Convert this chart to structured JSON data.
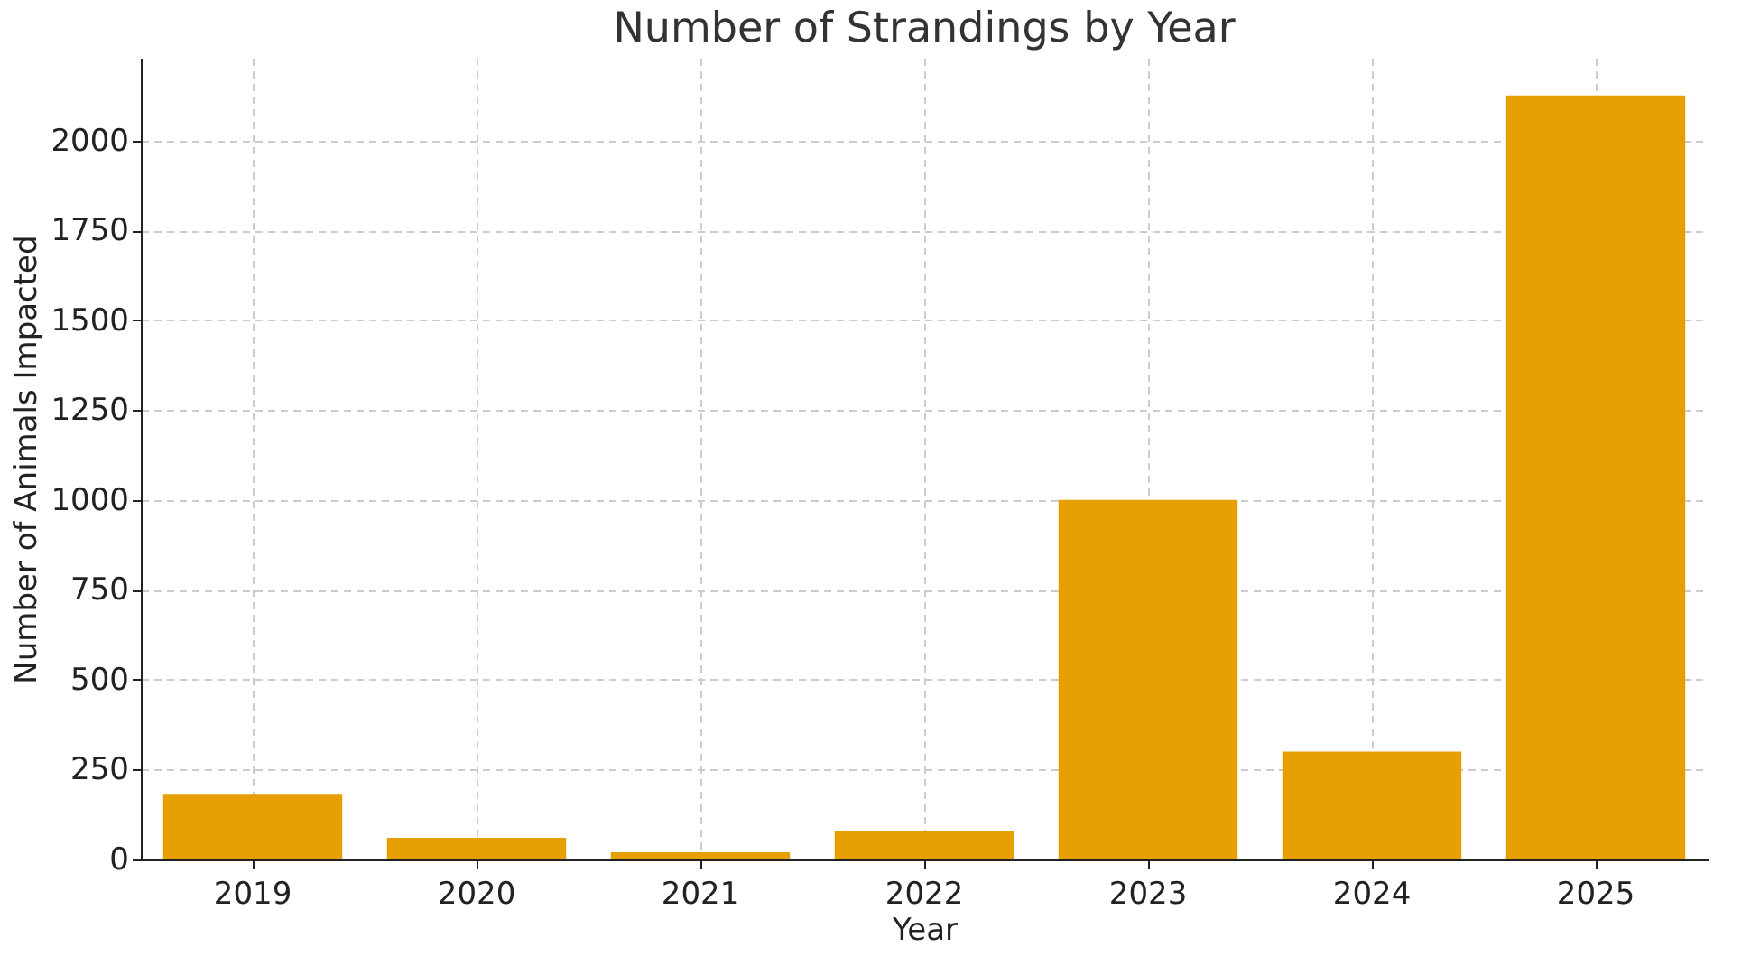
{
  "chart_data": {
    "type": "bar",
    "title": "Number of Strandings by Year",
    "xlabel": "Year",
    "ylabel": "Number of Animals Impacted",
    "categories": [
      "2019",
      "2020",
      "2021",
      "2022",
      "2023",
      "2024",
      "2025"
    ],
    "values": [
      180,
      60,
      20,
      80,
      1000,
      300,
      2125
    ],
    "color": "#e69f00",
    "ylim": [
      0,
      2230
    ],
    "yticks": [
      0,
      250,
      500,
      750,
      1000,
      1250,
      1500,
      1750,
      2000
    ],
    "grid": true
  }
}
